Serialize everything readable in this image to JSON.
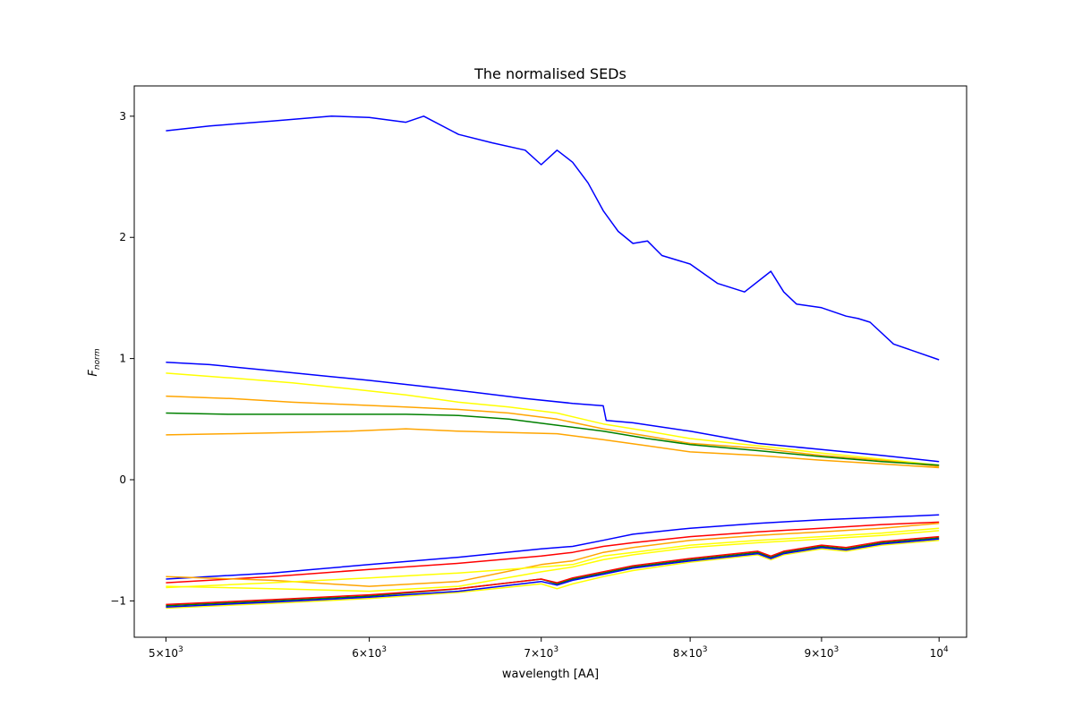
{
  "chart_data": {
    "type": "line",
    "title": "The normalised SEDs",
    "xlabel": "wavelength [AA]",
    "ylabel": "F",
    "ylabel_subscript": "norm",
    "xscale": "log",
    "xlim": [
      4860,
      10250
    ],
    "ylim": [
      -1.3,
      3.25
    ],
    "grid": false,
    "x_ticks": [
      {
        "value": 5000,
        "base": "5×10",
        "exp": "3"
      },
      {
        "value": 6000,
        "base": "6×10",
        "exp": "3"
      },
      {
        "value": 7000,
        "base": "7×10",
        "exp": "3"
      },
      {
        "value": 8000,
        "base": "8×10",
        "exp": "3"
      },
      {
        "value": 9000,
        "base": "9×10",
        "exp": "3"
      },
      {
        "value": 10000,
        "base": "10",
        "exp": "4"
      }
    ],
    "y_ticks": [
      {
        "value": -1,
        "label": "−1"
      },
      {
        "value": 0,
        "label": "0"
      },
      {
        "value": 1,
        "label": "1"
      },
      {
        "value": 2,
        "label": "2"
      },
      {
        "value": 3,
        "label": "3"
      }
    ],
    "series": [
      {
        "color": "#0000ff",
        "x": [
          5000,
          5200,
          5500,
          5800,
          6000,
          6200,
          6300,
          6500,
          6700,
          6900,
          7000,
          7100,
          7200,
          7300,
          7400,
          7500,
          7600,
          7700,
          7800,
          8000,
          8200,
          8400,
          8600,
          8700,
          8800,
          9000,
          9200,
          9300,
          9400,
          9600,
          10000
        ],
        "y": [
          2.88,
          2.92,
          2.96,
          3.0,
          2.99,
          2.95,
          3.0,
          2.85,
          2.78,
          2.72,
          2.6,
          2.72,
          2.62,
          2.45,
          2.22,
          2.05,
          1.95,
          1.97,
          1.85,
          1.78,
          1.62,
          1.55,
          1.72,
          1.55,
          1.45,
          1.42,
          1.35,
          1.33,
          1.3,
          1.12,
          0.99
        ]
      },
      {
        "color": "#0000ff",
        "x": [
          5000,
          5200,
          5500,
          5800,
          6000,
          6300,
          6600,
          6900,
          7200,
          7400,
          7420,
          7600,
          8000,
          8500,
          9000,
          9500,
          10000
        ],
        "y": [
          0.97,
          0.95,
          0.9,
          0.85,
          0.82,
          0.77,
          0.72,
          0.67,
          0.63,
          0.61,
          0.49,
          0.47,
          0.4,
          0.3,
          0.25,
          0.2,
          0.15
        ]
      },
      {
        "color": "#ffff00",
        "x": [
          5000,
          5300,
          5600,
          5900,
          6200,
          6500,
          6800,
          7100,
          7400,
          7700,
          8000,
          8500,
          9000,
          9500,
          10000
        ],
        "y": [
          0.88,
          0.84,
          0.8,
          0.75,
          0.7,
          0.64,
          0.6,
          0.55,
          0.46,
          0.4,
          0.34,
          0.28,
          0.22,
          0.17,
          0.12
        ]
      },
      {
        "color": "#ffa500",
        "x": [
          5000,
          5300,
          5600,
          5900,
          6200,
          6500,
          6800,
          7100,
          7400,
          7700,
          8000,
          8500,
          9000,
          9500,
          10000
        ],
        "y": [
          0.69,
          0.67,
          0.64,
          0.62,
          0.6,
          0.58,
          0.55,
          0.5,
          0.42,
          0.36,
          0.3,
          0.26,
          0.2,
          0.16,
          0.11
        ]
      },
      {
        "color": "#008000",
        "x": [
          5000,
          5300,
          5600,
          5900,
          6200,
          6500,
          6800,
          7100,
          7400,
          7700,
          8000,
          8500,
          9000,
          9500,
          10000
        ],
        "y": [
          0.55,
          0.54,
          0.54,
          0.54,
          0.54,
          0.53,
          0.5,
          0.45,
          0.4,
          0.34,
          0.29,
          0.24,
          0.19,
          0.15,
          0.12
        ]
      },
      {
        "color": "#ffa500",
        "x": [
          5000,
          5300,
          5600,
          5900,
          6200,
          6500,
          6800,
          7100,
          7400,
          7700,
          8000,
          8500,
          9000,
          9500,
          10000
        ],
        "y": [
          0.37,
          0.38,
          0.39,
          0.4,
          0.42,
          0.4,
          0.39,
          0.38,
          0.33,
          0.28,
          0.23,
          0.2,
          0.16,
          0.13,
          0.1
        ]
      },
      {
        "color": "#0000ff",
        "x": [
          5000,
          5500,
          6000,
          6500,
          7000,
          7200,
          7400,
          7600,
          8000,
          8500,
          9000,
          9500,
          10000
        ],
        "y": [
          -0.82,
          -0.77,
          -0.7,
          -0.64,
          -0.57,
          -0.55,
          -0.5,
          -0.45,
          -0.4,
          -0.36,
          -0.33,
          -0.31,
          -0.29
        ]
      },
      {
        "color": "#ff0000",
        "x": [
          5000,
          5500,
          6000,
          6500,
          7000,
          7200,
          7400,
          7600,
          8000,
          8500,
          9000,
          9500,
          10000
        ],
        "y": [
          -0.85,
          -0.8,
          -0.74,
          -0.69,
          -0.63,
          -0.6,
          -0.55,
          -0.52,
          -0.47,
          -0.43,
          -0.4,
          -0.37,
          -0.35
        ]
      },
      {
        "color": "#ffa500",
        "x": [
          5000,
          5500,
          6000,
          6500,
          7000,
          7200,
          7400,
          7600,
          8000,
          8500,
          9000,
          9500,
          10000
        ],
        "y": [
          -0.8,
          -0.83,
          -0.88,
          -0.84,
          -0.7,
          -0.67,
          -0.6,
          -0.56,
          -0.5,
          -0.46,
          -0.43,
          -0.4,
          -0.36
        ]
      },
      {
        "color": "#ffff00",
        "x": [
          5000,
          5500,
          6000,
          6500,
          7000,
          7200,
          7400,
          7600,
          8000,
          8500,
          9000,
          9500,
          10000
        ],
        "y": [
          -0.89,
          -0.85,
          -0.81,
          -0.77,
          -0.72,
          -0.7,
          -0.63,
          -0.6,
          -0.54,
          -0.5,
          -0.47,
          -0.44,
          -0.4
        ]
      },
      {
        "color": "#ffff00",
        "x": [
          5000,
          5500,
          6000,
          6500,
          7000,
          7200,
          7400,
          7600,
          8000,
          8500,
          9000,
          9500,
          10000
        ],
        "y": [
          -0.88,
          -0.9,
          -0.92,
          -0.88,
          -0.76,
          -0.72,
          -0.66,
          -0.62,
          -0.56,
          -0.52,
          -0.49,
          -0.46,
          -0.42
        ]
      },
      {
        "color": "#008000",
        "x": [
          5000,
          5500,
          6000,
          6500,
          7000,
          7100,
          7200,
          7400,
          7600,
          8000,
          8500,
          8600,
          8700,
          9000,
          9200,
          9500,
          10000
        ],
        "y": [
          -1.04,
          -1.0,
          -0.96,
          -0.9,
          -0.82,
          -0.86,
          -0.82,
          -0.77,
          -0.72,
          -0.66,
          -0.6,
          -0.64,
          -0.6,
          -0.55,
          -0.57,
          -0.52,
          -0.48
        ]
      },
      {
        "color": "#ffff00",
        "x": [
          5000,
          5500,
          6000,
          6500,
          7000,
          7100,
          7200,
          7400,
          7600,
          8000,
          8500,
          8600,
          8700,
          9000,
          9200,
          9500,
          10000
        ],
        "y": [
          -1.06,
          -1.02,
          -0.98,
          -0.93,
          -0.86,
          -0.9,
          -0.86,
          -0.8,
          -0.75,
          -0.68,
          -0.62,
          -0.66,
          -0.62,
          -0.57,
          -0.59,
          -0.54,
          -0.5
        ]
      },
      {
        "color": "#ff0000",
        "x": [
          5000,
          5500,
          6000,
          6500,
          7000,
          7100,
          7200,
          7400,
          7600,
          8000,
          8500,
          8600,
          8700,
          9000,
          9200,
          9500,
          10000
        ],
        "y": [
          -1.03,
          -0.99,
          -0.95,
          -0.9,
          -0.82,
          -0.85,
          -0.81,
          -0.76,
          -0.71,
          -0.65,
          -0.59,
          -0.63,
          -0.59,
          -0.54,
          -0.56,
          -0.51,
          -0.47
        ]
      },
      {
        "color": "#0000ff",
        "x": [
          5000,
          5500,
          6000,
          6500,
          7000,
          7100,
          7200,
          7400,
          7600,
          8000,
          8500,
          8600,
          8700,
          9000,
          9200,
          9500,
          10000
        ],
        "y": [
          -1.05,
          -1.01,
          -0.97,
          -0.92,
          -0.84,
          -0.87,
          -0.83,
          -0.78,
          -0.73,
          -0.67,
          -0.61,
          -0.65,
          -0.61,
          -0.56,
          -0.58,
          -0.53,
          -0.49
        ]
      }
    ]
  }
}
